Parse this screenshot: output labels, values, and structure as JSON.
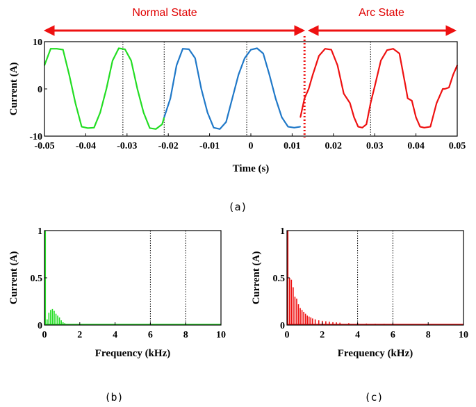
{
  "labels": {
    "normal_state": "Normal State",
    "arc_state": "Arc State",
    "panel_a": "(a)",
    "panel_b": "(b)",
    "panel_c": "(c)"
  },
  "colors": {
    "normal_green": "#22dd22",
    "normal_blue": "#1f78c8",
    "arc_red": "#ee1111",
    "annotation_red": "#ee1111"
  },
  "chart_data": [
    {
      "id": "a",
      "type": "line",
      "xlabel": "Time (s)",
      "ylabel": "Current (A)",
      "xlim": [
        -0.05,
        0.05
      ],
      "ylim": [
        -10,
        10
      ],
      "xticks": [
        "-0.05",
        "-0.04",
        "-0.03",
        "-0.02",
        "-0.01",
        "0",
        "0.01",
        "0.02",
        "0.03",
        "0.04",
        "0.05"
      ],
      "xtick_values": [
        -0.05,
        -0.04,
        -0.03,
        -0.02,
        -0.01,
        0,
        0.01,
        0.02,
        0.03,
        0.04,
        0.05
      ],
      "yticks": [
        "-10",
        "0",
        "10"
      ],
      "ytick_values": [
        -10,
        0,
        10
      ],
      "vlines_dotted": [
        -0.031,
        -0.021,
        -0.001,
        0.029
      ],
      "state_boundary": 0.013,
      "series": [
        {
          "color_key": "normal_green",
          "x": [
            -0.05,
            -0.0485,
            -0.047,
            -0.0455,
            -0.044,
            -0.0425,
            -0.041,
            -0.0395,
            -0.038,
            -0.0365,
            -0.035,
            -0.0335,
            -0.032,
            -0.0305,
            -0.029,
            -0.0275,
            -0.026,
            -0.0245,
            -0.023,
            -0.0215,
            -0.021
          ],
          "y": [
            5,
            8.5,
            8.5,
            8.3,
            3,
            -3,
            -8,
            -8.3,
            -8.2,
            -5,
            0,
            6,
            8.6,
            8.4,
            6,
            0,
            -5,
            -8.3,
            -8.5,
            -7.5,
            -6
          ]
        },
        {
          "color_key": "normal_blue",
          "x": [
            -0.021,
            -0.0195,
            -0.018,
            -0.0165,
            -0.015,
            -0.0135,
            -0.012,
            -0.0105,
            -0.009,
            -0.0075,
            -0.006,
            -0.0045,
            -0.003,
            -0.0015,
            0,
            0.0015,
            0.003,
            0.0045,
            0.006,
            0.0075,
            0.009,
            0.0105,
            0.012
          ],
          "y": [
            -6,
            -2,
            5,
            8.5,
            8.4,
            6.5,
            0,
            -5,
            -8.2,
            -8.5,
            -7,
            -2,
            3,
            6.5,
            8.3,
            8.6,
            7.5,
            3,
            -2,
            -6,
            -8,
            -8.2,
            -8
          ]
        },
        {
          "color_key": "arc_red",
          "x": [
            0.012,
            0.013,
            0.014,
            0.015,
            0.0165,
            0.018,
            0.0195,
            0.021,
            0.0225,
            0.024,
            0.025,
            0.026,
            0.027,
            0.028,
            0.029,
            0.03,
            0.0315,
            0.033,
            0.0345,
            0.036,
            0.0375,
            0.038,
            0.039,
            0.04,
            0.041,
            0.042,
            0.0435,
            0.045,
            0.0465,
            0.047,
            0.048,
            0.049,
            0.05
          ],
          "y": [
            -6,
            -2,
            0,
            3,
            7,
            8.5,
            8.3,
            5,
            -1,
            -3,
            -6,
            -8,
            -8.2,
            -7.5,
            -3,
            0.5,
            6,
            8.2,
            8.5,
            7.5,
            0.5,
            -2,
            -2.5,
            -6,
            -8,
            -8.2,
            -8,
            -3,
            0,
            0,
            0.3,
            3,
            5
          ]
        }
      ]
    },
    {
      "id": "b",
      "type": "bar",
      "xlabel": "Frequency (kHz)",
      "ylabel": "Current (A)",
      "xlim": [
        0,
        10
      ],
      "ylim": [
        0,
        1
      ],
      "xticks": [
        "0",
        "2",
        "4",
        "6",
        "8",
        "10"
      ],
      "xtick_values": [
        0,
        2,
        4,
        6,
        8,
        10
      ],
      "yticks": [
        "0",
        "0.5",
        "1"
      ],
      "ytick_values": [
        0,
        0.5,
        1
      ],
      "vlines_dotted": [
        6,
        8
      ],
      "color_key": "normal_green",
      "x": [
        0.05,
        0.15,
        0.25,
        0.35,
        0.45,
        0.55,
        0.65,
        0.75,
        0.85,
        0.95,
        1.05,
        1.15,
        1.25
      ],
      "values": [
        1.0,
        0.06,
        0.13,
        0.16,
        0.17,
        0.15,
        0.12,
        0.1,
        0.08,
        0.05,
        0.03,
        0.02,
        0.01
      ]
    },
    {
      "id": "c",
      "type": "bar",
      "xlabel": "Frequency (kHz)",
      "ylabel": "Current (A)",
      "xlim": [
        0,
        10
      ],
      "ylim": [
        0,
        1
      ],
      "xticks": [
        "0",
        "2",
        "4",
        "6",
        "8",
        "10"
      ],
      "xtick_values": [
        0,
        2,
        4,
        6,
        8,
        10
      ],
      "yticks": [
        "0",
        "0.5",
        "1"
      ],
      "ytick_values": [
        0,
        0.5,
        1
      ],
      "vlines_dotted": [
        4,
        6
      ],
      "color_key": "arc_red",
      "x": [
        0.05,
        0.15,
        0.25,
        0.35,
        0.45,
        0.55,
        0.65,
        0.75,
        0.85,
        0.95,
        1.05,
        1.15,
        1.25,
        1.35,
        1.45,
        1.6,
        1.8,
        2.0,
        2.2,
        2.4,
        2.6,
        2.8,
        3.0,
        3.5,
        4.0,
        4.5,
        5.0,
        5.5,
        6.0,
        6.5,
        7.0,
        7.5,
        8.0,
        8.5,
        9.0,
        9.5
      ],
      "values": [
        1.0,
        0.5,
        0.48,
        0.4,
        0.3,
        0.28,
        0.22,
        0.18,
        0.16,
        0.14,
        0.12,
        0.1,
        0.09,
        0.08,
        0.07,
        0.06,
        0.05,
        0.045,
        0.04,
        0.035,
        0.03,
        0.028,
        0.025,
        0.02,
        0.018,
        0.016,
        0.014,
        0.013,
        0.012,
        0.011,
        0.01,
        0.01,
        0.009,
        0.009,
        0.008,
        0.008
      ]
    }
  ]
}
